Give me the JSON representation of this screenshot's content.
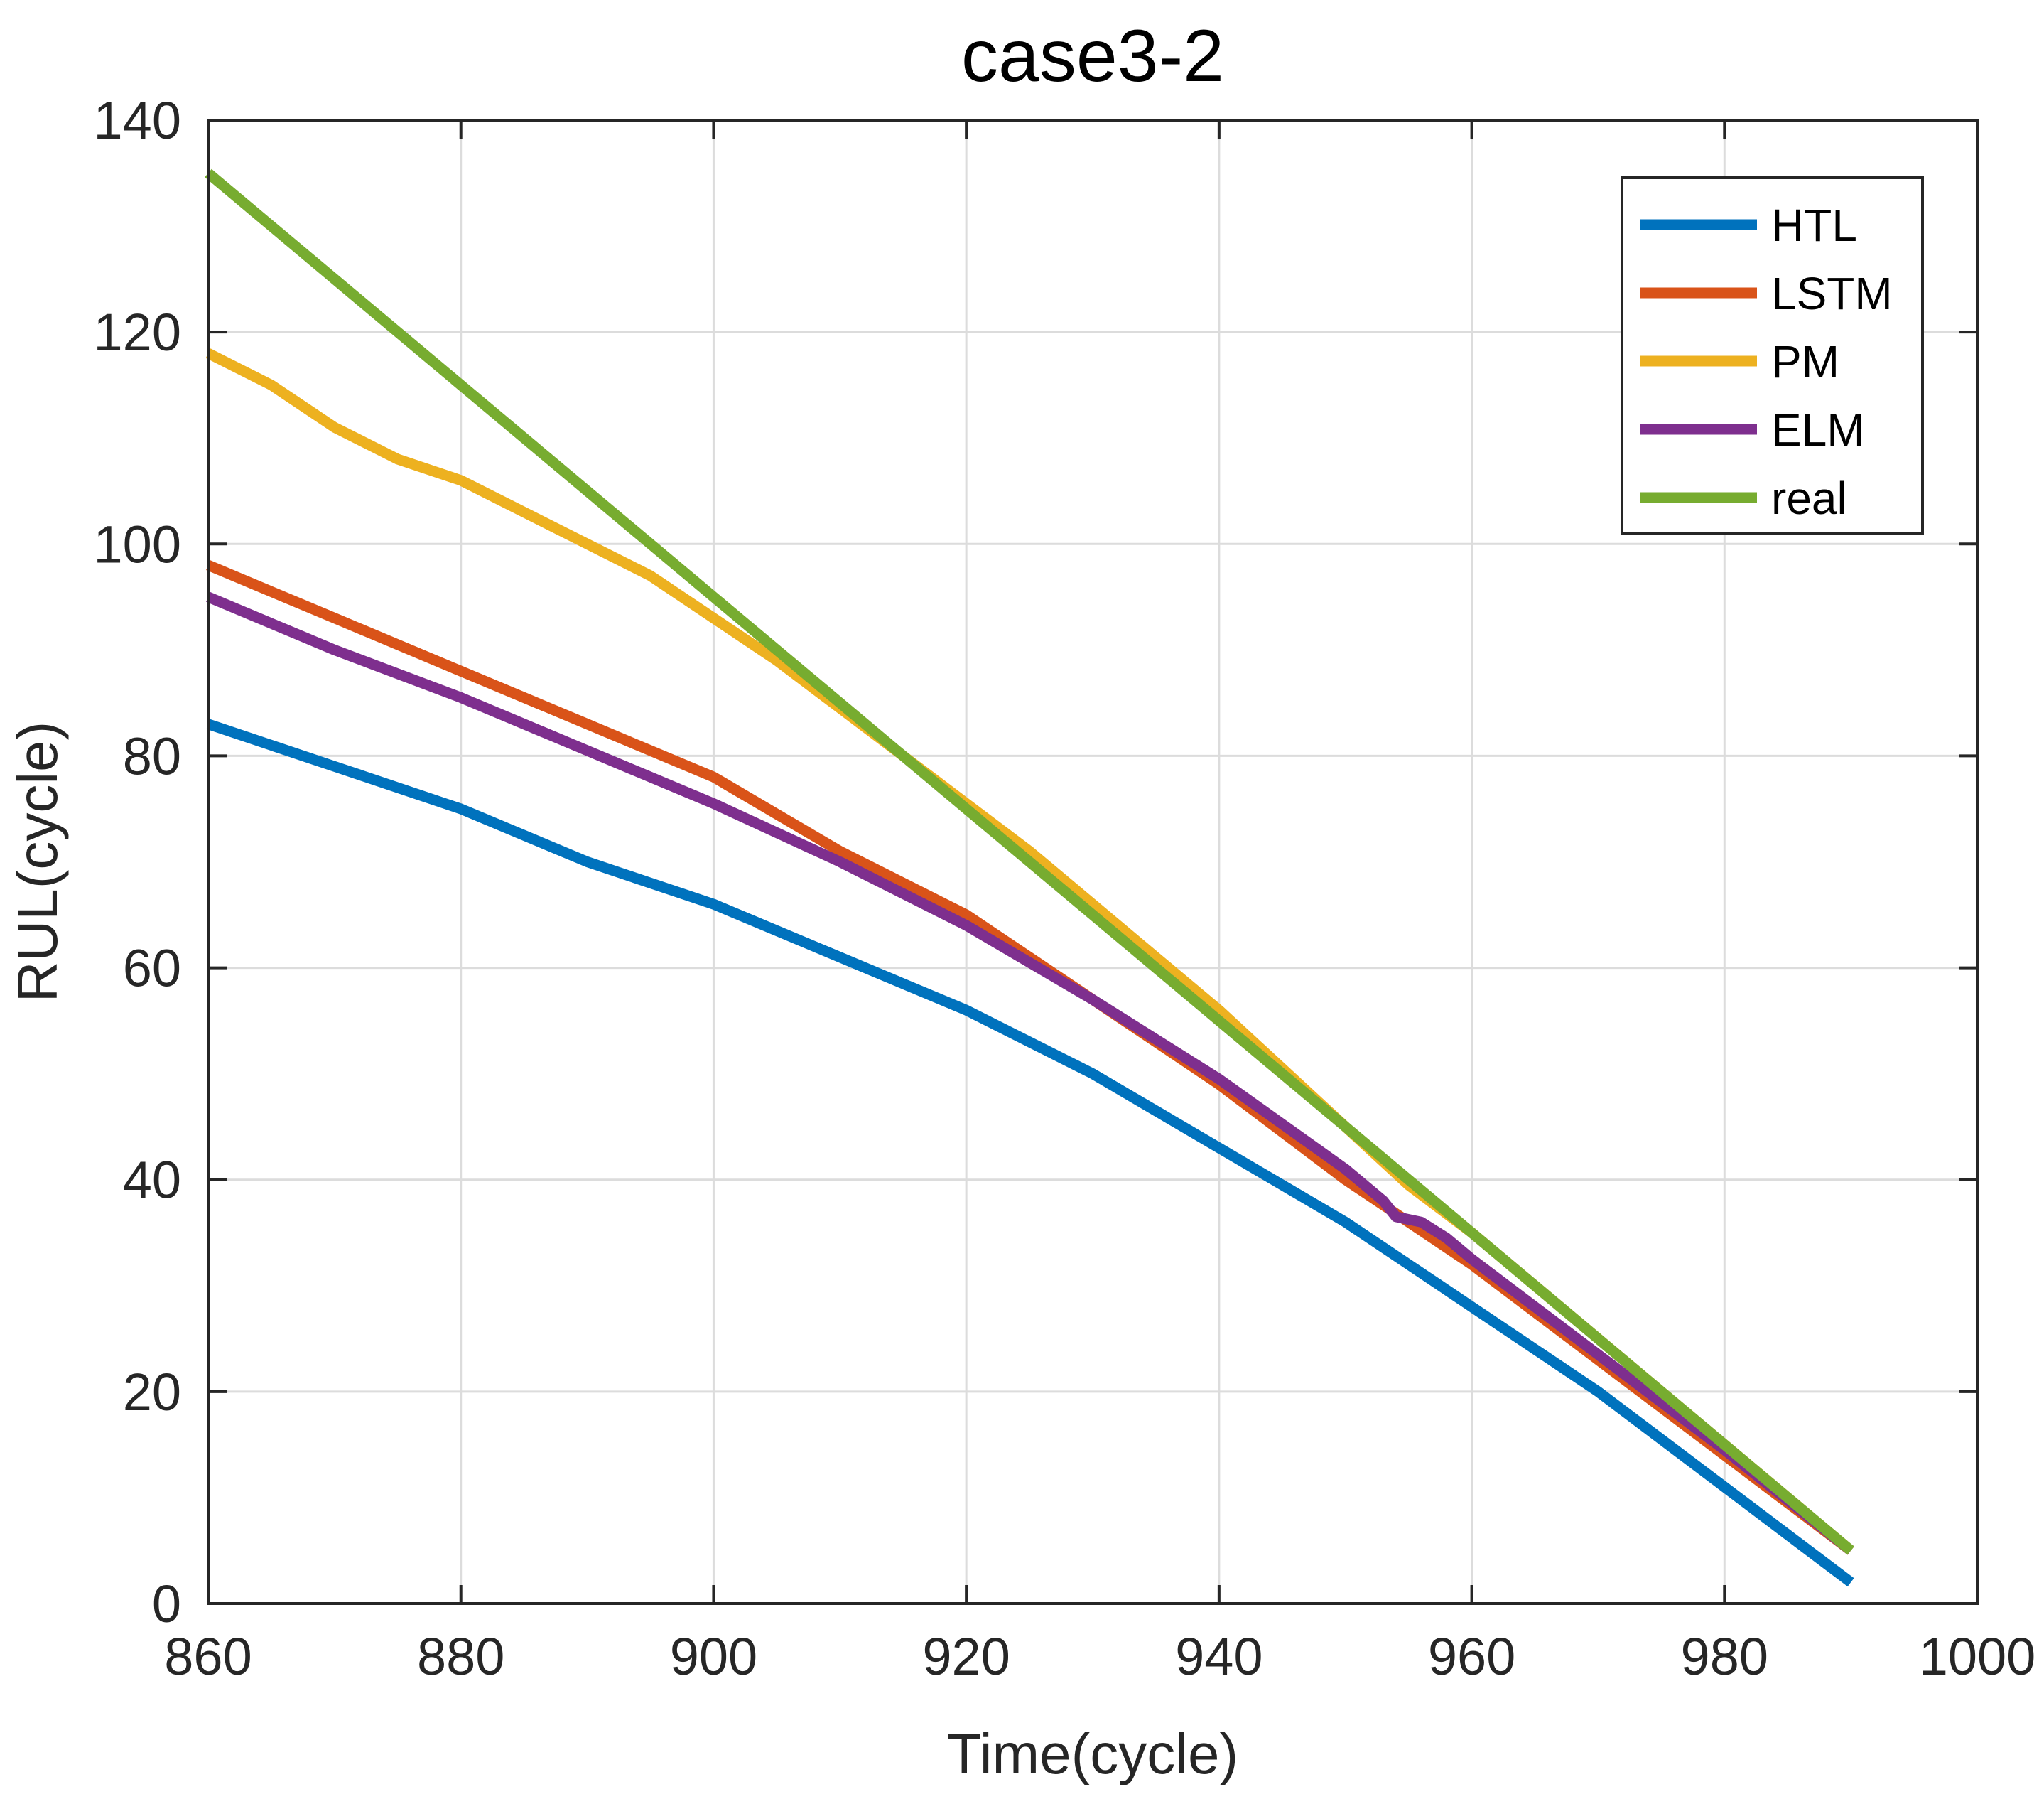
{
  "chart_data": {
    "type": "line",
    "title": "case3-2",
    "xlabel": "Time(cycle)",
    "ylabel": "RUL(cycle)",
    "xlim": [
      860,
      1000
    ],
    "ylim": [
      0,
      140
    ],
    "xticks": [
      860,
      880,
      900,
      920,
      940,
      960,
      980,
      1000
    ],
    "yticks": [
      0,
      20,
      40,
      60,
      80,
      100,
      120,
      140
    ],
    "grid": true,
    "legend_position": "top-right",
    "series": [
      {
        "name": "HTL",
        "color": "#0072BD",
        "x": [
          860,
          870,
          880,
          890,
          900,
          910,
          920,
          930,
          940,
          950,
          960,
          970,
          980,
          990
        ],
        "y": [
          83,
          79,
          75,
          70,
          66,
          61,
          56,
          50,
          43,
          36,
          28,
          20,
          11,
          2
        ]
      },
      {
        "name": "LSTM",
        "color": "#D95319",
        "x": [
          860,
          870,
          880,
          890,
          900,
          910,
          920,
          930,
          940,
          950,
          960,
          970,
          980,
          990
        ],
        "y": [
          98,
          93,
          88,
          83,
          78,
          71,
          65,
          57,
          49,
          40,
          32,
          23,
          14,
          5
        ]
      },
      {
        "name": "PM",
        "color": "#EDB120",
        "x": [
          860,
          865,
          870,
          875,
          880,
          885,
          890,
          895,
          900,
          905,
          910,
          915,
          920,
          925,
          930,
          935,
          940,
          945,
          950,
          955,
          960,
          965,
          970,
          975,
          980,
          985,
          990
        ],
        "y": [
          118,
          115,
          111,
          108,
          106,
          103,
          100,
          97,
          93,
          89,
          84.5,
          80,
          75.5,
          71,
          66,
          61,
          56,
          50.5,
          45,
          39.5,
          35,
          30,
          25,
          20,
          15,
          10,
          5
        ]
      },
      {
        "name": "ELM",
        "color": "#7E2F8E",
        "x": [
          860,
          870,
          880,
          890,
          900,
          910,
          920,
          930,
          940,
          950,
          953,
          954,
          956,
          958,
          960,
          970,
          980,
          990
        ],
        "y": [
          95,
          90,
          85.5,
          80.5,
          75.5,
          70,
          64,
          57,
          49.5,
          41,
          38,
          36.5,
          36,
          34.5,
          32.5,
          23.5,
          14.5,
          5
        ]
      },
      {
        "name": "real",
        "color": "#77AC30",
        "x": [
          860,
          990
        ],
        "y": [
          135,
          5
        ]
      }
    ]
  }
}
